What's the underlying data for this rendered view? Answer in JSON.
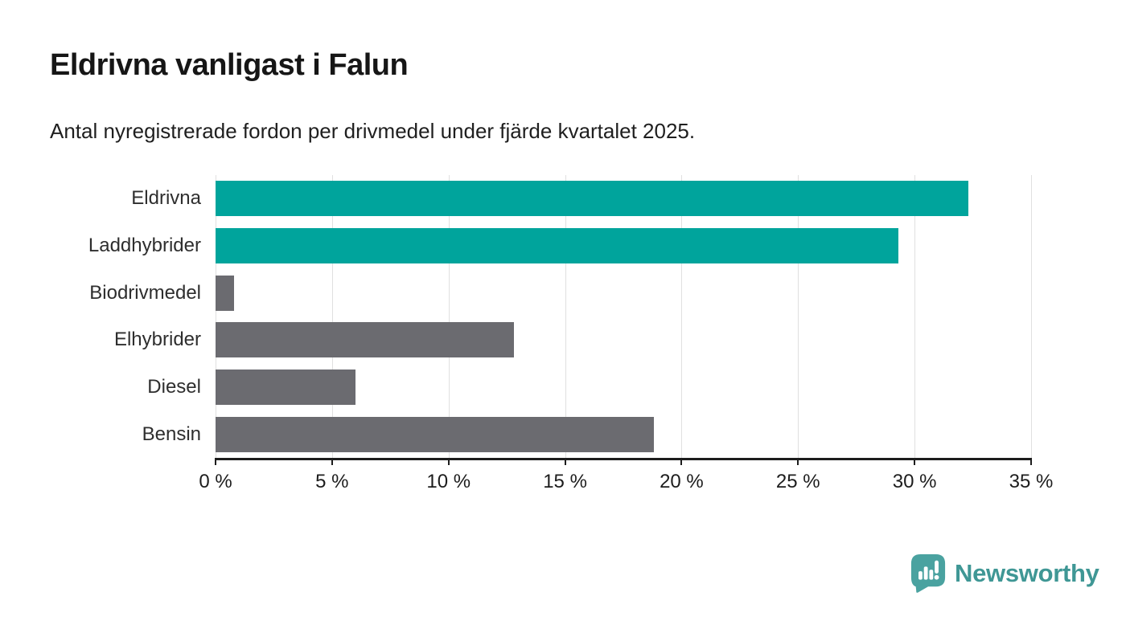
{
  "header": {
    "title": "Eldrivna vanligast i Falun",
    "subtitle": "Antal nyregistrerade fordon per drivmedel under fjärde kvartalet 2025."
  },
  "chart_data": {
    "type": "bar",
    "orientation": "horizontal",
    "title": "Eldrivna vanligast i Falun",
    "subtitle": "Antal nyregistrerade fordon per drivmedel under fjärde kvartalet 2025.",
    "categories": [
      "Eldrivna",
      "Laddhybrider",
      "Biodrivmedel",
      "Elhybrider",
      "Diesel",
      "Bensin"
    ],
    "values": [
      32.3,
      29.3,
      0.8,
      12.8,
      6.0,
      18.8
    ],
    "unit": "%",
    "xlim": [
      0,
      35
    ],
    "x_ticks": [
      0,
      5,
      10,
      15,
      20,
      25,
      30,
      35
    ],
    "x_tick_labels": [
      "0 %",
      "5 %",
      "10 %",
      "15 %",
      "20 %",
      "25 %",
      "30 %",
      "35 %"
    ],
    "bar_colors": [
      "#00a49c",
      "#00a49c",
      "#6b6b70",
      "#6b6b70",
      "#6b6b70",
      "#6b6b70"
    ],
    "highlight_color": "#00a49c",
    "default_color": "#6b6b70",
    "gridline_color": "#e0e0e0",
    "axis_color": "#1d1d1d",
    "grid": true,
    "legend": false
  },
  "footer": {
    "brand": "Newsworthy",
    "brand_color": "#3f9795",
    "logo_color": "#4aa2a0",
    "logo_glyph_color": "#ffffff"
  }
}
